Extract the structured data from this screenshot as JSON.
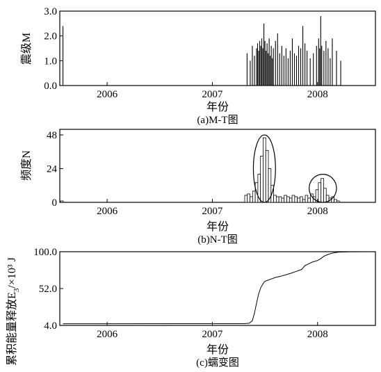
{
  "chart_data": [
    {
      "type": "bar",
      "caption": "(a)M-T图",
      "xlabel": "年份",
      "ylabel": "震级M",
      "x_tick_labels": [
        "2006",
        "2007",
        "2008"
      ],
      "x_ticks": [
        2006,
        2007,
        2008
      ],
      "xlim": [
        2005.55,
        2008.55
      ],
      "ylim": [
        0,
        3.0
      ],
      "y_tick_labels": [
        "0.0",
        "1.0",
        "2.0",
        "3.0"
      ],
      "y_ticks": [
        0,
        1,
        2,
        3
      ],
      "events": [
        {
          "t": 2005.58,
          "m": 2.4
        },
        {
          "t": 2007.33,
          "m": 1.3
        },
        {
          "t": 2007.36,
          "m": 1.0
        },
        {
          "t": 2007.38,
          "m": 1.6
        },
        {
          "t": 2007.4,
          "m": 1.2
        },
        {
          "t": 2007.42,
          "m": 1.5
        },
        {
          "t": 2007.43,
          "m": 1.7
        },
        {
          "t": 2007.44,
          "m": 1.4
        },
        {
          "t": 2007.45,
          "m": 1.8
        },
        {
          "t": 2007.46,
          "m": 1.6
        },
        {
          "t": 2007.47,
          "m": 1.9
        },
        {
          "t": 2007.48,
          "m": 1.5
        },
        {
          "t": 2007.49,
          "m": 2.5
        },
        {
          "t": 2007.5,
          "m": 1.8
        },
        {
          "t": 2007.51,
          "m": 1.4
        },
        {
          "t": 2007.52,
          "m": 1.7
        },
        {
          "t": 2007.53,
          "m": 1.3
        },
        {
          "t": 2007.54,
          "m": 1.9
        },
        {
          "t": 2007.55,
          "m": 1.2
        },
        {
          "t": 2007.56,
          "m": 1.6
        },
        {
          "t": 2007.57,
          "m": 1.1
        },
        {
          "t": 2007.58,
          "m": 1.5
        },
        {
          "t": 2007.6,
          "m": 1.8
        },
        {
          "t": 2007.62,
          "m": 2.1
        },
        {
          "t": 2007.64,
          "m": 1.3
        },
        {
          "t": 2007.66,
          "m": 1.6
        },
        {
          "t": 2007.68,
          "m": 1.2
        },
        {
          "t": 2007.7,
          "m": 1.5
        },
        {
          "t": 2007.72,
          "m": 1.1
        },
        {
          "t": 2007.74,
          "m": 1.4
        },
        {
          "t": 2007.76,
          "m": 1.9
        },
        {
          "t": 2007.78,
          "m": 1.3
        },
        {
          "t": 2007.8,
          "m": 1.2
        },
        {
          "t": 2007.82,
          "m": 1.6
        },
        {
          "t": 2007.84,
          "m": 1.5
        },
        {
          "t": 2007.86,
          "m": 2.4
        },
        {
          "t": 2007.88,
          "m": 1.7
        },
        {
          "t": 2007.9,
          "m": 1.4
        },
        {
          "t": 2007.93,
          "m": 1.1
        },
        {
          "t": 2007.96,
          "m": 1.3
        },
        {
          "t": 2007.99,
          "m": 1.6
        },
        {
          "t": 2008.01,
          "m": 1.9
        },
        {
          "t": 2008.02,
          "m": 1.5
        },
        {
          "t": 2008.03,
          "m": 2.8
        },
        {
          "t": 2008.04,
          "m": 1.6
        },
        {
          "t": 2008.06,
          "m": 1.4
        },
        {
          "t": 2008.08,
          "m": 1.8
        },
        {
          "t": 2008.1,
          "m": 1.5
        },
        {
          "t": 2008.12,
          "m": 1.1
        },
        {
          "t": 2008.14,
          "m": 1.9
        },
        {
          "t": 2008.18,
          "m": 1.4
        },
        {
          "t": 2008.22,
          "m": 1.0
        }
      ]
    },
    {
      "type": "bar",
      "caption": "(b)N-T图",
      "xlabel": "年份",
      "ylabel": "频度N",
      "x_tick_labels": [
        "2006",
        "2007",
        "2008"
      ],
      "x_ticks": [
        2006,
        2007,
        2008
      ],
      "xlim": [
        2005.55,
        2008.55
      ],
      "ylim": [
        0,
        52
      ],
      "y_tick_labels": [
        "0",
        "24",
        "48"
      ],
      "y_ticks": [
        0,
        24,
        48
      ],
      "bin_width": 0.025,
      "bins": [
        {
          "t": 2005.57,
          "n": 1
        },
        {
          "t": 2007.32,
          "n": 5
        },
        {
          "t": 2007.345,
          "n": 6
        },
        {
          "t": 2007.37,
          "n": 4
        },
        {
          "t": 2007.395,
          "n": 8
        },
        {
          "t": 2007.42,
          "n": 14
        },
        {
          "t": 2007.445,
          "n": 20
        },
        {
          "t": 2007.47,
          "n": 33
        },
        {
          "t": 2007.495,
          "n": 46
        },
        {
          "t": 2007.52,
          "n": 37
        },
        {
          "t": 2007.545,
          "n": 24
        },
        {
          "t": 2007.57,
          "n": 12
        },
        {
          "t": 2007.595,
          "n": 5
        },
        {
          "t": 2007.62,
          "n": 4
        },
        {
          "t": 2007.645,
          "n": 4
        },
        {
          "t": 2007.67,
          "n": 3
        },
        {
          "t": 2007.695,
          "n": 5
        },
        {
          "t": 2007.72,
          "n": 4
        },
        {
          "t": 2007.745,
          "n": 3
        },
        {
          "t": 2007.77,
          "n": 5
        },
        {
          "t": 2007.795,
          "n": 4
        },
        {
          "t": 2007.82,
          "n": 3
        },
        {
          "t": 2007.845,
          "n": 4
        },
        {
          "t": 2007.87,
          "n": 2
        },
        {
          "t": 2007.895,
          "n": 5
        },
        {
          "t": 2007.92,
          "n": 3
        },
        {
          "t": 2007.945,
          "n": 6
        },
        {
          "t": 2007.97,
          "n": 4
        },
        {
          "t": 2007.995,
          "n": 9
        },
        {
          "t": 2008.02,
          "n": 14
        },
        {
          "t": 2008.045,
          "n": 17
        },
        {
          "t": 2008.07,
          "n": 10
        },
        {
          "t": 2008.095,
          "n": 5
        },
        {
          "t": 2008.12,
          "n": 3
        },
        {
          "t": 2008.145,
          "n": 4
        },
        {
          "t": 2008.17,
          "n": 2
        },
        {
          "t": 2008.195,
          "n": 1
        }
      ],
      "annotations": [
        {
          "type": "ellipse",
          "center": [
            2007.495,
            24
          ],
          "rx_years": 0.105,
          "ry": 24
        },
        {
          "type": "ellipse",
          "center": [
            2008.05,
            10
          ],
          "rx_years": 0.13,
          "ry": 10
        }
      ]
    },
    {
      "type": "line",
      "caption": "(c)蠕变图",
      "xlabel": "年份",
      "ylabel": "累积能量释放E",
      "ylabel_subscript": "3",
      "ylabel_unit": "/×10³ J",
      "x_tick_labels": [
        "2006",
        "2007",
        "2008"
      ],
      "x_ticks": [
        2006,
        2007,
        2008
      ],
      "xlim": [
        2005.55,
        2008.55
      ],
      "ylim": [
        4.0,
        100.0
      ],
      "y_tick_labels": [
        "4.0",
        "52.0",
        "100.0"
      ],
      "y_ticks": [
        4,
        52,
        100
      ],
      "x": [
        2005.58,
        2007.3,
        2007.35,
        2007.38,
        2007.4,
        2007.42,
        2007.44,
        2007.46,
        2007.48,
        2007.5,
        2007.53,
        2007.56,
        2007.6,
        2007.65,
        2007.7,
        2007.75,
        2007.8,
        2007.85,
        2007.88,
        2007.92,
        2007.95,
        2008.0,
        2008.03,
        2008.06,
        2008.1,
        2008.15,
        2008.2,
        2008.3,
        2008.45
      ],
      "y": [
        6.2,
        6.3,
        6.8,
        10.0,
        20.0,
        33.0,
        45.0,
        53.0,
        58.0,
        61.5,
        63.0,
        64.5,
        66.5,
        68.0,
        70.0,
        72.0,
        74.5,
        77.0,
        82.0,
        84.5,
        86.5,
        88.5,
        91.0,
        94.0,
        96.5,
        98.5,
        99.5,
        99.9,
        100.0
      ]
    }
  ]
}
